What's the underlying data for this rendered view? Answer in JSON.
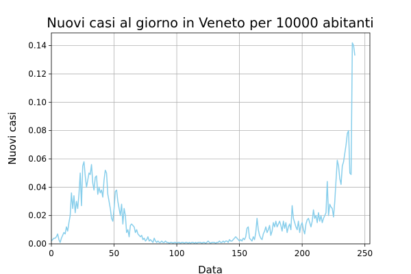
{
  "chart_data": {
    "type": "line",
    "title": "Nuovi casi al giorno in Veneto per 10000 abitanti",
    "x_label": "Data",
    "y_label": "Nuovi casi",
    "x": [
      0,
      1,
      2,
      3,
      4,
      5,
      6,
      7,
      8,
      9,
      10,
      11,
      12,
      13,
      14,
      15,
      16,
      17,
      18,
      19,
      20,
      21,
      22,
      23,
      24,
      25,
      26,
      27,
      28,
      29,
      30,
      31,
      32,
      33,
      34,
      35,
      36,
      37,
      38,
      39,
      40,
      41,
      42,
      43,
      44,
      45,
      46,
      47,
      48,
      49,
      50,
      51,
      52,
      53,
      54,
      55,
      56,
      57,
      58,
      59,
      60,
      61,
      62,
      63,
      64,
      65,
      66,
      67,
      68,
      69,
      70,
      71,
      72,
      73,
      74,
      75,
      76,
      77,
      78,
      79,
      80,
      81,
      82,
      83,
      84,
      85,
      86,
      87,
      88,
      89,
      90,
      91,
      92,
      93,
      94,
      95,
      96,
      97,
      98,
      99,
      100,
      101,
      102,
      103,
      104,
      105,
      106,
      107,
      108,
      109,
      110,
      111,
      112,
      113,
      114,
      115,
      116,
      117,
      118,
      119,
      120,
      121,
      122,
      123,
      124,
      125,
      126,
      127,
      128,
      129,
      130,
      131,
      132,
      133,
      134,
      135,
      136,
      137,
      138,
      139,
      140,
      141,
      142,
      143,
      144,
      145,
      146,
      147,
      148,
      149,
      150,
      151,
      152,
      153,
      154,
      155,
      156,
      157,
      158,
      159,
      160,
      161,
      162,
      163,
      164,
      165,
      166,
      167,
      168,
      169,
      170,
      171,
      172,
      173,
      174,
      175,
      176,
      177,
      178,
      179,
      180,
      181,
      182,
      183,
      184,
      185,
      186,
      187,
      188,
      189,
      190,
      191,
      192,
      193,
      194,
      195,
      196,
      197,
      198,
      199,
      200,
      201,
      202,
      203,
      204,
      205,
      206,
      207,
      208,
      209,
      210,
      211,
      212,
      213,
      214,
      215,
      216,
      217,
      218,
      219,
      220,
      221,
      222,
      223,
      224,
      225,
      226,
      227,
      228,
      229,
      230,
      231,
      232,
      233,
      234,
      235,
      236,
      237,
      238,
      239,
      240,
      241,
      242
    ],
    "series": [
      {
        "name": "Nuovi casi",
        "color": "#87ceeb",
        "values": [
          0.002,
          0.003,
          0.004,
          0.004,
          0.005,
          0.007,
          0.003,
          0.001,
          0.004,
          0.006,
          0.008,
          0.007,
          0.012,
          0.009,
          0.015,
          0.02,
          0.036,
          0.025,
          0.034,
          0.022,
          0.03,
          0.025,
          0.035,
          0.05,
          0.027,
          0.055,
          0.058,
          0.048,
          0.04,
          0.045,
          0.05,
          0.049,
          0.056,
          0.043,
          0.038,
          0.047,
          0.048,
          0.035,
          0.04,
          0.036,
          0.038,
          0.033,
          0.045,
          0.052,
          0.05,
          0.035,
          0.03,
          0.025,
          0.018,
          0.016,
          0.025,
          0.037,
          0.038,
          0.03,
          0.025,
          0.02,
          0.028,
          0.014,
          0.025,
          0.02,
          0.008,
          0.01,
          0.005,
          0.013,
          0.014,
          0.013,
          0.012,
          0.008,
          0.01,
          0.007,
          0.006,
          0.005,
          0.006,
          0.003,
          0.004,
          0.002,
          0.003,
          0.005,
          0.002,
          0.003,
          0.002,
          0.001,
          0.004,
          0.002,
          0.001,
          0.002,
          0.001,
          0.001,
          0.002,
          0.001,
          0.001,
          0.002,
          0.001,
          0.001,
          0.0005,
          0.001,
          0.001,
          0.0005,
          0.001,
          0.001,
          0.0005,
          0.001,
          0.001,
          0.0005,
          0.001,
          0.001,
          0.0005,
          0.001,
          0.001,
          0.0005,
          0.001,
          0.0005,
          0.001,
          0.001,
          0.0005,
          0.001,
          0.0005,
          0.001,
          0.001,
          0.001,
          0.0005,
          0.001,
          0.001,
          0.0005,
          0.001,
          0.002,
          0.001,
          0.0005,
          0.001,
          0.001,
          0.001,
          0.0005,
          0.001,
          0.001,
          0.002,
          0.001,
          0.001,
          0.002,
          0.001,
          0.002,
          0.002,
          0.001,
          0.003,
          0.002,
          0.002,
          0.003,
          0.004,
          0.005,
          0.004,
          0.003,
          0.002,
          0.003,
          0.002,
          0.004,
          0.003,
          0.005,
          0.011,
          0.012,
          0.004,
          0.003,
          0.002,
          0.005,
          0.003,
          0.008,
          0.018,
          0.01,
          0.006,
          0.004,
          0.003,
          0.007,
          0.009,
          0.012,
          0.008,
          0.01,
          0.013,
          0.006,
          0.009,
          0.015,
          0.012,
          0.016,
          0.012,
          0.014,
          0.016,
          0.013,
          0.009,
          0.016,
          0.011,
          0.015,
          0.008,
          0.012,
          0.014,
          0.01,
          0.027,
          0.018,
          0.015,
          0.012,
          0.01,
          0.016,
          0.008,
          0.013,
          0.015,
          0.01,
          0.007,
          0.014,
          0.017,
          0.018,
          0.015,
          0.012,
          0.016,
          0.024,
          0.018,
          0.02,
          0.015,
          0.022,
          0.016,
          0.02,
          0.015,
          0.018,
          0.02,
          0.022,
          0.044,
          0.02,
          0.028,
          0.026,
          0.025,
          0.019,
          0.03,
          0.045,
          0.059,
          0.055,
          0.046,
          0.042,
          0.055,
          0.058,
          0.064,
          0.07,
          0.078,
          0.08,
          0.05,
          0.049,
          0.142,
          0.14,
          0.133
        ]
      }
    ],
    "xlim": [
      0,
      254
    ],
    "xticks": [
      0,
      50,
      100,
      150,
      200,
      250
    ],
    "ylim": [
      0,
      0.149
    ],
    "yticks": [
      {
        "value": 0,
        "label": "0.00"
      },
      {
        "value": 0.02,
        "label": "0.02"
      },
      {
        "value": 0.04,
        "label": "0.04"
      },
      {
        "value": 0.06,
        "label": "0.06"
      },
      {
        "value": 0.08,
        "label": "0.08"
      },
      {
        "value": 0.1,
        "label": "0.10"
      },
      {
        "value": 0.12,
        "label": "0.12"
      },
      {
        "value": 0.14,
        "label": "0.14"
      }
    ],
    "grid": true
  }
}
